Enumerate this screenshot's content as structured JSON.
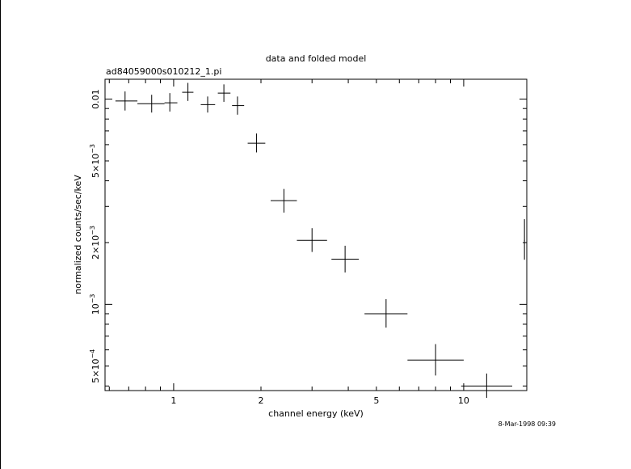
{
  "page": {
    "timestamp": "8-Mar-1998 09:39"
  },
  "chart_data": {
    "type": "scatter",
    "title": "data and folded model",
    "subtitle": "ad84059000s010212_1.pi",
    "xlabel": "channel energy (keV)",
    "ylabel": "normalized counts/sec/keV",
    "x_scale": "log",
    "y_scale": "log",
    "xlim": [
      0.58,
      16.5
    ],
    "ylim": [
      0.00038,
      0.0125
    ],
    "grid": false,
    "x_ticks": [
      {
        "value": 1,
        "label": "1"
      },
      {
        "value": 2,
        "label": "2"
      },
      {
        "value": 5,
        "label": "5"
      },
      {
        "value": 10,
        "label": "10"
      }
    ],
    "y_ticks": [
      {
        "value": 0.0005,
        "mantissa": "5×10",
        "exp": "−4"
      },
      {
        "value": 0.001,
        "mantissa": "10",
        "exp": "−3"
      },
      {
        "value": 0.002,
        "mantissa": "2×10",
        "exp": "−3"
      },
      {
        "value": 0.005,
        "mantissa": "5×10",
        "exp": "−3"
      },
      {
        "value": 0.01,
        "mantissa": "0.01",
        "exp": ""
      }
    ],
    "series": [
      {
        "style": "crosses with x and y error bars",
        "color": "#000000",
        "points": [
          {
            "x": 0.68,
            "y": 0.0098,
            "xerr": [
              0.63,
              0.75
            ],
            "yerr": [
              0.0088,
              0.0109
            ]
          },
          {
            "x": 0.84,
            "y": 0.0095,
            "xerr": [
              0.75,
              0.93
            ],
            "yerr": [
              0.0086,
              0.0105
            ]
          },
          {
            "x": 0.97,
            "y": 0.0096,
            "xerr": [
              0.93,
              1.03
            ],
            "yerr": [
              0.0087,
              0.0107
            ]
          },
          {
            "x": 1.12,
            "y": 0.0108,
            "xerr": [
              1.07,
              1.17
            ],
            "yerr": [
              0.0098,
              0.012
            ]
          },
          {
            "x": 1.31,
            "y": 0.0094,
            "xerr": [
              1.24,
              1.39
            ],
            "yerr": [
              0.0086,
              0.0103
            ]
          },
          {
            "x": 1.49,
            "y": 0.0107,
            "xerr": [
              1.42,
              1.57
            ],
            "yerr": [
              0.0097,
              0.0118
            ]
          },
          {
            "x": 1.66,
            "y": 0.0093,
            "xerr": [
              1.59,
              1.75
            ],
            "yerr": [
              0.0084,
              0.0103
            ]
          },
          {
            "x": 1.93,
            "y": 0.0061,
            "xerr": [
              1.8,
              2.07
            ],
            "yerr": [
              0.0055,
              0.0068
            ]
          },
          {
            "x": 2.4,
            "y": 0.0032,
            "xerr": [
              2.16,
              2.66
            ],
            "yerr": [
              0.0028,
              0.00365
            ]
          },
          {
            "x": 3.0,
            "y": 0.00205,
            "xerr": [
              2.66,
              3.38
            ],
            "yerr": [
              0.0018,
              0.00235
            ]
          },
          {
            "x": 3.9,
            "y": 0.00166,
            "xerr": [
              3.5,
              4.35
            ],
            "yerr": [
              0.00143,
              0.00193
            ]
          },
          {
            "x": 5.4,
            "y": 0.0009,
            "xerr": [
              4.55,
              6.4
            ],
            "yerr": [
              0.00077,
              0.00106
            ]
          },
          {
            "x": 8.0,
            "y": 0.000535,
            "xerr": [
              6.4,
              10.0
            ],
            "yerr": [
              0.00045,
              0.00064
            ]
          },
          {
            "x": 12.0,
            "y": 0.0004,
            "xerr": [
              9.8,
              14.7
            ],
            "yerr": [
              0.00035,
              0.00046
            ]
          },
          {
            "x": 16.2,
            "y": 0.00205,
            "xerr": [
              16.15,
              16.25
            ],
            "yerr": [
              0.00165,
              0.0026
            ]
          }
        ]
      }
    ]
  }
}
